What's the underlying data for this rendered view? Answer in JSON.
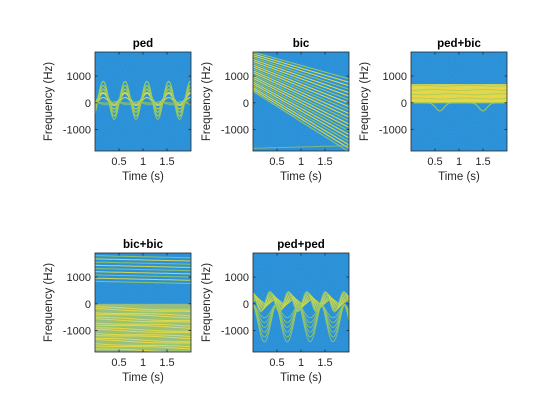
{
  "chart_data": [
    {
      "type": "heatmap",
      "title": "ped",
      "xlabel": "Time (s)",
      "ylabel": "Frequency (Hz)",
      "xlim": [
        0,
        2
      ],
      "ylim": [
        -1800,
        1900
      ],
      "x_ticks": [
        0.5,
        1,
        1.5
      ],
      "x_tick_labels": [
        "0.5",
        "1",
        "1.5"
      ],
      "y_ticks": [
        1000,
        0,
        -1000
      ],
      "y_tick_labels": [
        "1000",
        "0",
        "-1000"
      ],
      "content": "pedestrian: oscillating sinusoidal micro-Doppler around 0 Hz"
    },
    {
      "type": "heatmap",
      "title": "bic",
      "xlabel": "Time (s)",
      "ylabel": "Frequency (Hz)",
      "xlim": [
        0,
        2
      ],
      "ylim": [
        -1800,
        1900
      ],
      "x_ticks": [
        0.5,
        1,
        1.5
      ],
      "x_tick_labels": [
        "0.5",
        "1",
        "1.5"
      ],
      "y_ticks": [
        1000,
        0,
        -1000
      ],
      "y_tick_labels": [
        "1000",
        "0",
        "-1000"
      ],
      "content": "bicyclist: band of positive Doppler lines decreasing with time"
    },
    {
      "type": "heatmap",
      "title": "ped+bic",
      "xlabel": "Time (s)",
      "ylabel": "Frequency (Hz)",
      "xlim": [
        0,
        2
      ],
      "ylim": [
        -1800,
        1900
      ],
      "x_ticks": [
        0.5,
        1,
        1.5
      ],
      "x_tick_labels": [
        "0.5",
        "1",
        "1.5"
      ],
      "y_ticks": [
        1000,
        0,
        -1000
      ],
      "y_tick_labels": [
        "1000",
        "0",
        "-1000"
      ],
      "content": "flat positive band about 0-700 Hz with small negative dips"
    },
    {
      "type": "heatmap",
      "title": "bic+bic",
      "xlabel": "Time (s)",
      "ylabel": "Frequency (Hz)",
      "xlim": [
        0,
        2
      ],
      "ylim": [
        -1800,
        1900
      ],
      "x_ticks": [
        0.5,
        1,
        1.5
      ],
      "x_tick_labels": [
        "0.5",
        "1",
        "1.5"
      ],
      "y_ticks": [
        1000,
        0,
        -1000
      ],
      "y_tick_labels": [
        "1000",
        "0",
        "-1000"
      ],
      "content": "two bicyclists: lines near the top and a wide band from 0 to about -1800 Hz"
    },
    {
      "type": "heatmap",
      "title": "ped+ped",
      "xlabel": "Time (s)",
      "ylabel": "Frequency (Hz)",
      "xlim": [
        0,
        2
      ],
      "ylim": [
        -1800,
        1900
      ],
      "x_ticks": [
        0.5,
        1,
        1.5
      ],
      "x_tick_labels": [
        "0.5",
        "1",
        "1.5"
      ],
      "y_ticks": [
        1000,
        0,
        -1000
      ],
      "y_tick_labels": [
        "1000",
        "0",
        "-1000"
      ],
      "content": "two pedestrians: oscillating lines around 0 with negative V-shaped dips"
    }
  ],
  "colors": {
    "background": "#2a8fd8",
    "signal": "#f0e040",
    "signal_mid": "#9ccb5c",
    "frame": "#262626"
  }
}
